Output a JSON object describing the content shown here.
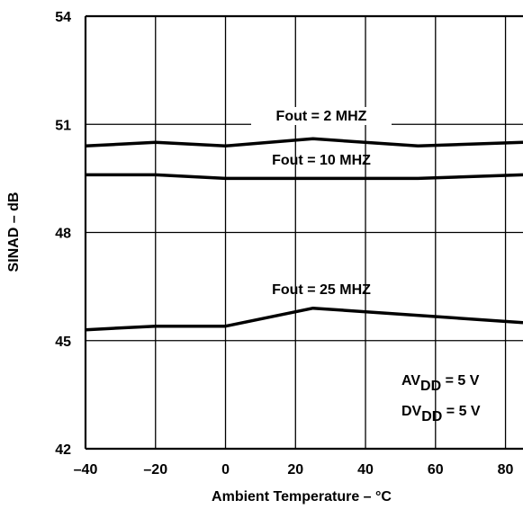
{
  "chart_data": {
    "type": "line",
    "xlabel": "Ambient Temperature – °C",
    "ylabel": "SINAD – dB",
    "xlim": [
      -40,
      85
    ],
    "ylim": [
      42,
      54
    ],
    "x_ticks": [
      "–40",
      "–20",
      "0",
      "20",
      "40",
      "60",
      "80"
    ],
    "y_ticks": [
      "42",
      "45",
      "48",
      "51",
      "54"
    ],
    "grid": true,
    "series": [
      {
        "name": "Fout = 2 MHZ",
        "x": [
          -40,
          -20,
          0,
          25,
          55,
          85
        ],
        "y": [
          50.4,
          50.5,
          50.4,
          50.6,
          50.4,
          50.5
        ]
      },
      {
        "name": "Fout = 10 MHZ",
        "x": [
          -40,
          -20,
          0,
          25,
          55,
          85
        ],
        "y": [
          49.6,
          49.6,
          49.5,
          49.5,
          49.5,
          49.6
        ]
      },
      {
        "name": "Fout = 25 MHZ",
        "x": [
          -40,
          -20,
          0,
          25,
          85
        ],
        "y": [
          45.3,
          45.4,
          45.4,
          45.9,
          45.5
        ]
      }
    ],
    "annotations": {
      "av_main": "AV",
      "av_sub": "DD",
      "av_value": " = 5 V",
      "dv_main": "DV",
      "dv_sub": "DD",
      "dv_value": " = 5 V"
    }
  }
}
